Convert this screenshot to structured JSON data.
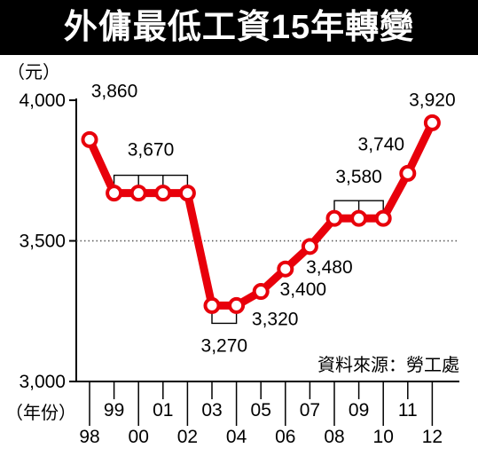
{
  "title": "外傭最低工資15年轉變",
  "source": "資料來源：勞工處",
  "chart_data": {
    "type": "line",
    "title": "外傭最低工資15年轉變",
    "ylabel": "（元）",
    "xlabel": "（年份）",
    "ylim": [
      3000,
      4000
    ],
    "yticks": [
      3000,
      3500,
      4000
    ],
    "ytick_labels": [
      "3,000",
      "3,500",
      "4,000"
    ],
    "reference_line": 3500,
    "categories": [
      "98",
      "99",
      "00",
      "01",
      "02",
      "03",
      "04",
      "05",
      "06",
      "07",
      "08",
      "09",
      "10",
      "11",
      "12"
    ],
    "values": [
      3860,
      3670,
      3670,
      3670,
      3670,
      3270,
      3270,
      3320,
      3400,
      3480,
      3580,
      3580,
      3580,
      3740,
      3920
    ],
    "data_labels": [
      {
        "text": "3,860",
        "from": 0,
        "to": 0
      },
      {
        "text": "3,670",
        "from": 1,
        "to": 4
      },
      {
        "text": "3,270",
        "from": 5,
        "to": 6
      },
      {
        "text": "3,320",
        "from": 7,
        "to": 7
      },
      {
        "text": "3,400",
        "from": 8,
        "to": 8
      },
      {
        "text": "3,480",
        "from": 9,
        "to": 9
      },
      {
        "text": "3,580",
        "from": 10,
        "to": 12
      },
      {
        "text": "3,740",
        "from": 13,
        "to": 13
      },
      {
        "text": "3,920",
        "from": 14,
        "to": 14
      }
    ],
    "line_color": "#e8000b",
    "marker_fill": "#ffffff",
    "grid": false
  }
}
